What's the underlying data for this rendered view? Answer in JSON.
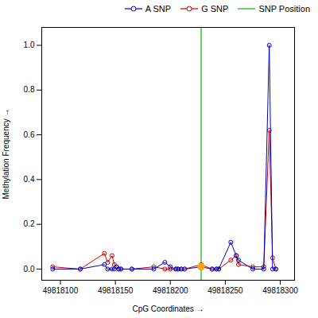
{
  "chart_data": {
    "type": "line",
    "xlabel": "CpG Coordinates",
    "ylabel": "Methylation Frequency",
    "x": [
      49818093,
      49818118,
      49818140,
      49818143,
      49818147,
      49818149,
      49818151,
      49818153,
      49818155,
      49818165,
      49818185,
      49818195,
      49818200,
      49818205,
      49818207,
      49818210,
      49818213,
      49818228,
      49818238,
      49818242,
      49818244,
      49818255,
      49818260,
      49818262,
      49818275,
      49818285,
      49818290,
      49818293,
      49818296
    ],
    "series": [
      {
        "name": "A SNP",
        "color": "#0000cc",
        "marker": "circle",
        "values": [
          0.0,
          0.0,
          0.02,
          0.0,
          0.0,
          0.0,
          0.01,
          0.0,
          0.0,
          0.0,
          0.0,
          0.03,
          0.01,
          0.0,
          0.0,
          0.0,
          0.0,
          0.01,
          0.0,
          0.0,
          0.0,
          0.12,
          0.06,
          0.04,
          0.0,
          0.0,
          1.0,
          0.0,
          0.0
        ]
      },
      {
        "name": "G SNP",
        "color": "#cc0000",
        "marker": "circle",
        "values": [
          0.01,
          0.0,
          0.07,
          0.03,
          0.06,
          0.02,
          0.01,
          0.0,
          0.0,
          0.0,
          0.01,
          0.0,
          0.0,
          0.0,
          0.0,
          0.0,
          0.0,
          0.02,
          0.0,
          0.0,
          0.0,
          0.04,
          0.06,
          0.02,
          0.01,
          0.01,
          0.62,
          0.05,
          0.0
        ]
      }
    ],
    "vlines": [
      {
        "name": "SNP Position",
        "x": 49818228,
        "color": "#00bb00"
      }
    ],
    "points": [
      {
        "x": 49818228,
        "y": 0.01,
        "color": "#ffa500"
      }
    ],
    "xlim": [
      49818083,
      49818313
    ],
    "ylim": [
      -0.05,
      1.08
    ],
    "xticks": [
      49818100,
      49818150,
      49818200,
      49818250,
      49818300
    ],
    "yticks": [
      {
        "value": 0.0,
        "label": "0.0"
      },
      0.2,
      0.4,
      0.6,
      0.8,
      {
        "value": 1.0,
        "label": "1.0"
      }
    ],
    "grid": false,
    "legend": "upper right"
  }
}
